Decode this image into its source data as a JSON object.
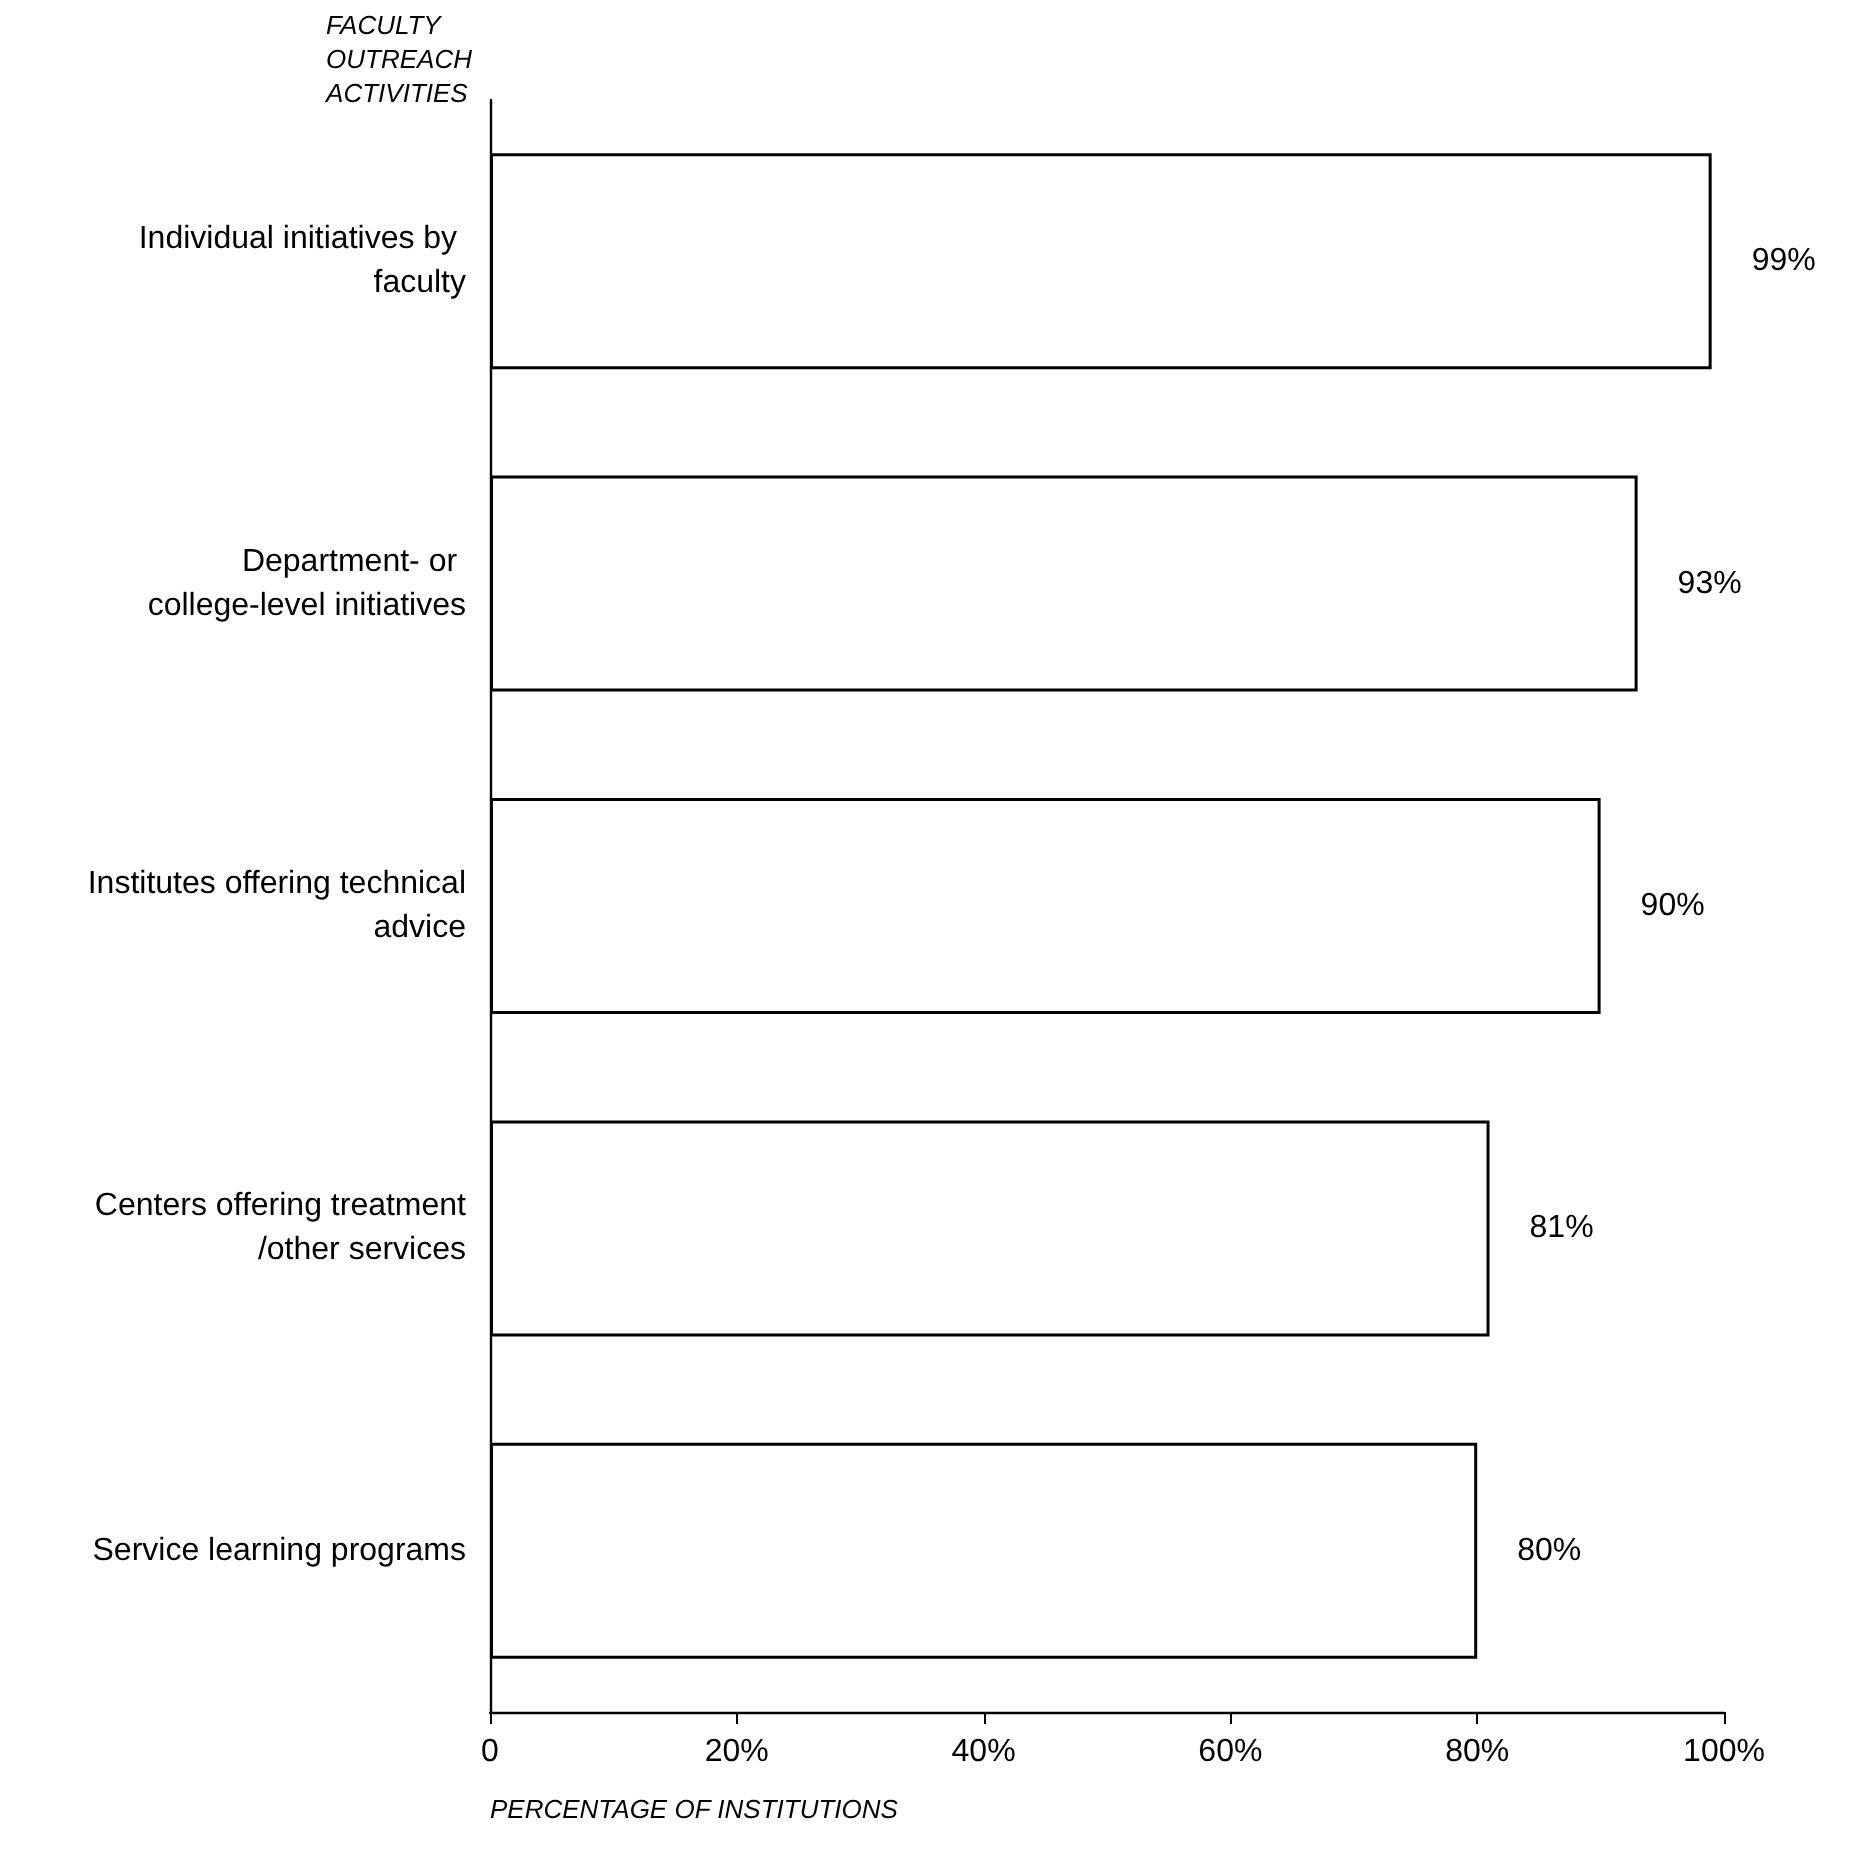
{
  "chart_data": {
    "type": "bar",
    "orientation": "horizontal",
    "ylabel": "FACULTY OUTREACH ACTIVITIES",
    "xlabel": "PERCENTAGE OF INSTITUTIONS",
    "categories": [
      "Individual initiatives by faculty",
      "Department- or college-level initiatives",
      "Institutes offering technical advice",
      "Centers offering treatment/other services",
      "Service learning programs"
    ],
    "values": [
      99,
      93,
      90,
      81,
      80
    ],
    "value_labels": [
      "99%",
      "93%",
      "90%",
      "81%",
      "80%"
    ],
    "color": "#ffffff",
    "xlim": [
      0,
      100
    ],
    "xticks": [
      0,
      {
        "value": 20,
        "label": "20%"
      },
      {
        "value": 40,
        "label": "40%"
      },
      {
        "value": 60,
        "label": "60%"
      },
      {
        "value": 80,
        "label": "80%"
      },
      {
        "value": 100,
        "label": "100%"
      }
    ],
    "grid": false
  }
}
